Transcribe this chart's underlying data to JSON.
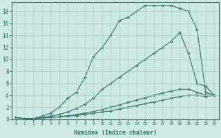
{
  "xlabel": "Humidex (Indice chaleur)",
  "bg_color": "#cde8e5",
  "grid_color": "#a8ceca",
  "line_color": "#2e6e66",
  "xlim": [
    -0.5,
    23.5
  ],
  "ylim": [
    0,
    19.5
  ],
  "xticks": [
    0,
    1,
    2,
    3,
    4,
    5,
    6,
    7,
    8,
    9,
    10,
    11,
    12,
    13,
    14,
    15,
    16,
    17,
    18,
    19,
    20,
    21,
    22,
    23
  ],
  "yticks": [
    0,
    2,
    4,
    6,
    8,
    10,
    12,
    14,
    16,
    18
  ],
  "series": [
    {
      "x": [
        0,
        1,
        2,
        3,
        4,
        5,
        6,
        7,
        8,
        9,
        10,
        11,
        12,
        13,
        14,
        15,
        16,
        17,
        18,
        19,
        20,
        21,
        22,
        23
      ],
      "y": [
        0.3,
        0.1,
        0.1,
        0.5,
        1.0,
        2.0,
        3.5,
        4.5,
        7.0,
        10.5,
        12.0,
        14.0,
        16.5,
        17.0,
        18.0,
        19.0,
        19.0,
        19.0,
        19.0,
        18.5,
        18.0,
        15.0,
        4.5,
        4.0
      ]
    },
    {
      "x": [
        0,
        1,
        2,
        3,
        4,
        5,
        6,
        7,
        8,
        9,
        10,
        11,
        12,
        13,
        14,
        15,
        16,
        17,
        18,
        19,
        20,
        21,
        22,
        23
      ],
      "y": [
        0.3,
        0.1,
        0.1,
        0.3,
        0.5,
        0.8,
        1.2,
        1.8,
        2.5,
        3.5,
        5.0,
        6.0,
        7.0,
        8.0,
        9.0,
        10.0,
        11.0,
        12.0,
        13.0,
        14.5,
        11.0,
        6.0,
        5.5,
        4.0
      ]
    },
    {
      "x": [
        0,
        1,
        2,
        3,
        4,
        5,
        6,
        7,
        8,
        9,
        10,
        11,
        12,
        13,
        14,
        15,
        16,
        17,
        18,
        19,
        20,
        21,
        22,
        23
      ],
      "y": [
        0.3,
        0.1,
        0.1,
        0.2,
        0.3,
        0.4,
        0.6,
        0.8,
        1.0,
        1.3,
        1.6,
        2.0,
        2.4,
        2.8,
        3.2,
        3.6,
        4.0,
        4.4,
        4.7,
        5.0,
        5.0,
        4.5,
        4.0,
        4.0
      ]
    },
    {
      "x": [
        0,
        1,
        2,
        3,
        4,
        5,
        6,
        7,
        8,
        9,
        10,
        11,
        12,
        13,
        14,
        15,
        16,
        17,
        18,
        19,
        20,
        21,
        22,
        23
      ],
      "y": [
        0.3,
        0.1,
        0.1,
        0.2,
        0.3,
        0.4,
        0.5,
        0.6,
        0.8,
        1.0,
        1.2,
        1.4,
        1.7,
        2.0,
        2.3,
        2.6,
        2.9,
        3.2,
        3.5,
        3.8,
        4.0,
        4.0,
        3.8,
        4.0
      ]
    }
  ]
}
